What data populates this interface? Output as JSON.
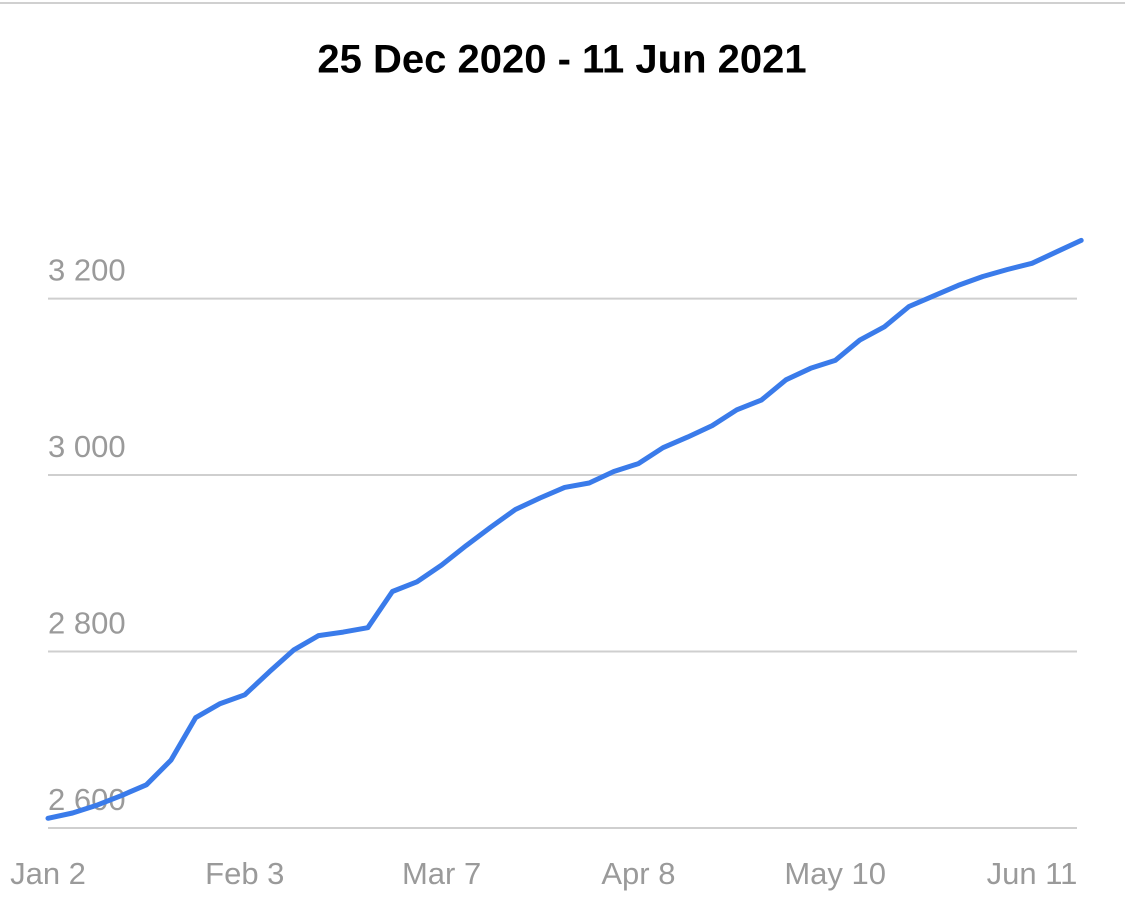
{
  "chart_data": {
    "type": "line",
    "title": "25 Dec 2020 - 11 Jun 2021",
    "categories": [
      "Jan 2",
      null,
      null,
      null,
      null,
      null,
      null,
      null,
      "Feb 3",
      null,
      null,
      null,
      null,
      null,
      null,
      null,
      "Mar 7",
      null,
      null,
      null,
      null,
      null,
      null,
      null,
      "Apr 8",
      null,
      null,
      null,
      null,
      null,
      null,
      null,
      "May 10",
      null,
      null,
      null,
      null,
      null,
      null,
      null,
      "Jun 11",
      null,
      null
    ],
    "values": [
      2611,
      2617,
      2626,
      2637,
      2649,
      2677,
      2725,
      2741,
      2751,
      2777,
      2802,
      2818,
      2822,
      2827,
      2868,
      2879,
      2898,
      2920,
      2941,
      2961,
      2974,
      2986,
      2991,
      3004,
      3013,
      3031,
      3043,
      3056,
      3074,
      3085,
      3108,
      3121,
      3130,
      3153,
      3168,
      3191,
      3203,
      3215,
      3225,
      3233,
      3240,
      3253,
      3266
    ],
    "color": "#3a7bea",
    "ylim": [
      2600,
      3280
    ],
    "yticks": [
      {
        "value": 2600,
        "label": "2 600"
      },
      {
        "value": 2800,
        "label": "2 800"
      },
      {
        "value": 3000,
        "label": "3 000"
      },
      {
        "value": 3200,
        "label": "3 200"
      }
    ],
    "grid": true
  }
}
